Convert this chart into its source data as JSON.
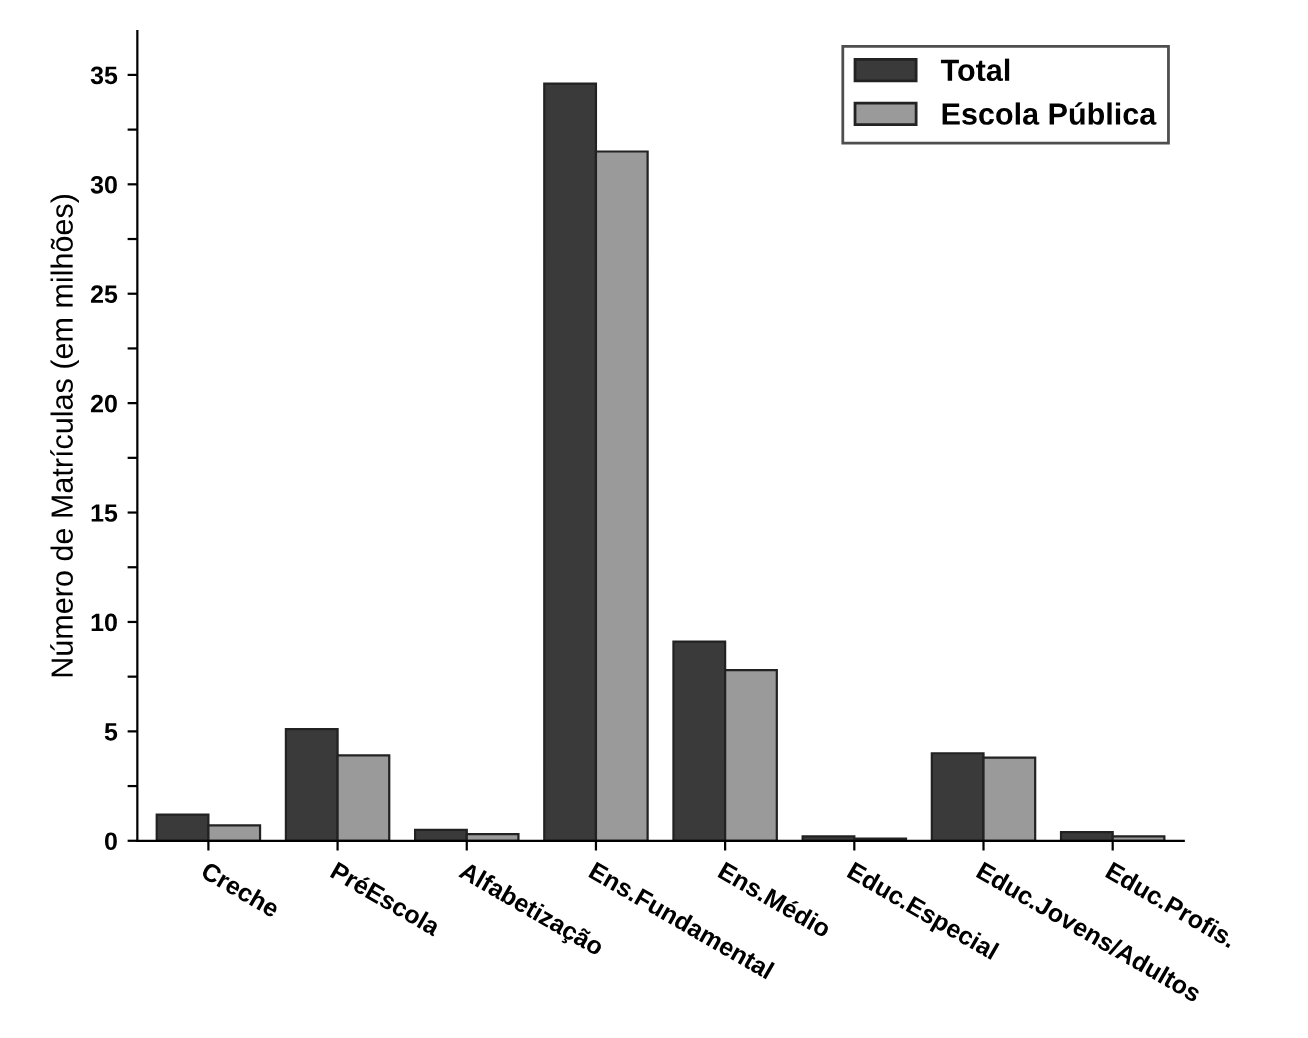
{
  "chart_data": {
    "type": "bar",
    "ylabel": "Número de Matrículas (em milhões)",
    "categories": [
      "Creche",
      "PréEscola",
      "Alfabetização",
      "Ens.Fundamental",
      "Ens.Médio",
      "Educ.Especial",
      "Educ.Jovens/Adultos",
      "Educ.Profis."
    ],
    "series": [
      {
        "name": "Total",
        "color": "#3a3a3a",
        "values": [
          1.2,
          5.1,
          0.5,
          34.6,
          9.1,
          0.2,
          4.0,
          0.4
        ]
      },
      {
        "name": "Escola Pública",
        "color": "#9a9a9a",
        "values": [
          0.7,
          3.9,
          0.3,
          31.5,
          7.8,
          0.1,
          3.8,
          0.2
        ]
      }
    ],
    "ylim": [
      0,
      37
    ],
    "yticks": [
      0,
      {
        "value": 2.5,
        "label": null
      },
      5,
      {
        "value": 7.5,
        "label": null
      },
      10,
      {
        "value": 12.5,
        "label": null
      },
      15,
      {
        "value": 17.5,
        "label": null
      },
      20,
      {
        "value": 22.5,
        "label": null
      },
      25,
      {
        "value": 27.5,
        "label": null
      },
      30,
      {
        "value": 32.5,
        "label": null
      },
      35
    ],
    "grid": false,
    "legend": "top right"
  }
}
